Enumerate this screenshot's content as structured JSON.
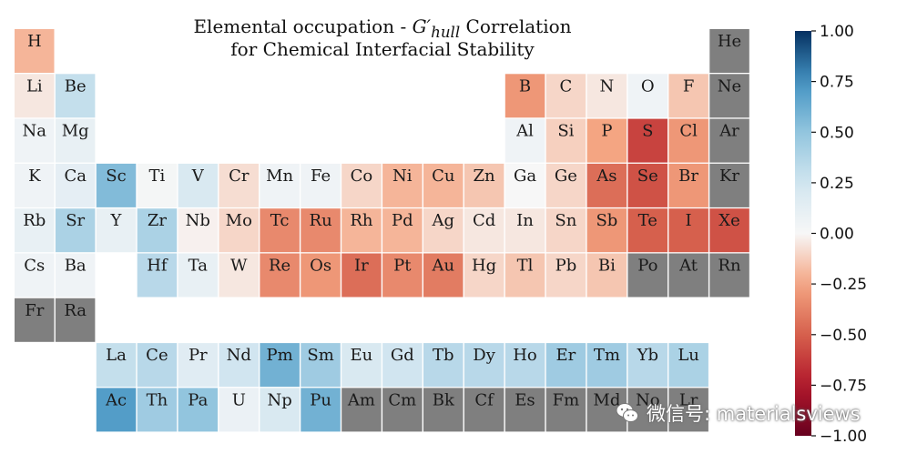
{
  "chart_data": {
    "type": "heatmap",
    "title_lines": [
      {
        "before": "Elemental occupation - ",
        "symbol": "G′",
        "subscript": "hull",
        "after": " Correlation"
      },
      {
        "text": "for Chemical Interfacial Stability"
      }
    ],
    "colorbar": {
      "min": -1.0,
      "max": 1.0,
      "colormap": "RdBu",
      "ticks": [
        1.0,
        0.75,
        0.5,
        0.25,
        0.0,
        -0.25,
        -0.5,
        -0.75,
        -1.0
      ],
      "tick_labels": [
        "1.00",
        "0.75",
        "0.50",
        "0.25",
        "0.00",
        "−0.25",
        "−0.50",
        "−0.75",
        "−1.00"
      ]
    },
    "missing_color": "#7f7f7f",
    "elements": [
      {
        "symbol": "H",
        "row": 1,
        "col": 1,
        "value": -0.2
      },
      {
        "symbol": "He",
        "row": 1,
        "col": 18,
        "value": null
      },
      {
        "symbol": "Li",
        "row": 2,
        "col": 1,
        "value": -0.05
      },
      {
        "symbol": "Be",
        "row": 2,
        "col": 2,
        "value": 0.3
      },
      {
        "symbol": "B",
        "row": 2,
        "col": 13,
        "value": -0.3
      },
      {
        "symbol": "C",
        "row": 2,
        "col": 14,
        "value": -0.1
      },
      {
        "symbol": "N",
        "row": 2,
        "col": 15,
        "value": -0.05
      },
      {
        "symbol": "O",
        "row": 2,
        "col": 16,
        "value": 0.05
      },
      {
        "symbol": "F",
        "row": 2,
        "col": 17,
        "value": -0.15
      },
      {
        "symbol": "Ne",
        "row": 2,
        "col": 18,
        "value": null
      },
      {
        "symbol": "Na",
        "row": 3,
        "col": 1,
        "value": 0.05
      },
      {
        "symbol": "Mg",
        "row": 3,
        "col": 2,
        "value": 0.1
      },
      {
        "symbol": "Al",
        "row": 3,
        "col": 13,
        "value": 0.05
      },
      {
        "symbol": "Si",
        "row": 3,
        "col": 14,
        "value": -0.12
      },
      {
        "symbol": "P",
        "row": 3,
        "col": 15,
        "value": -0.25
      },
      {
        "symbol": "S",
        "row": 3,
        "col": 16,
        "value": -0.6
      },
      {
        "symbol": "Cl",
        "row": 3,
        "col": 17,
        "value": -0.3
      },
      {
        "symbol": "Ar",
        "row": 3,
        "col": 18,
        "value": null
      },
      {
        "symbol": "K",
        "row": 4,
        "col": 1,
        "value": 0.05
      },
      {
        "symbol": "Ca",
        "row": 4,
        "col": 2,
        "value": 0.12
      },
      {
        "symbol": "Sc",
        "row": 4,
        "col": 3,
        "value": 0.55
      },
      {
        "symbol": "Ti",
        "row": 4,
        "col": 4,
        "value": 0.02
      },
      {
        "symbol": "V",
        "row": 4,
        "col": 5,
        "value": 0.2
      },
      {
        "symbol": "Cr",
        "row": 4,
        "col": 6,
        "value": -0.08
      },
      {
        "symbol": "Mn",
        "row": 4,
        "col": 7,
        "value": 0.05
      },
      {
        "symbol": "Fe",
        "row": 4,
        "col": 8,
        "value": 0.05
      },
      {
        "symbol": "Co",
        "row": 4,
        "col": 9,
        "value": -0.1
      },
      {
        "symbol": "Ni",
        "row": 4,
        "col": 10,
        "value": -0.2
      },
      {
        "symbol": "Cu",
        "row": 4,
        "col": 11,
        "value": -0.2
      },
      {
        "symbol": "Zn",
        "row": 4,
        "col": 12,
        "value": -0.15
      },
      {
        "symbol": "Ga",
        "row": 4,
        "col": 13,
        "value": 0.0
      },
      {
        "symbol": "Ge",
        "row": 4,
        "col": 14,
        "value": -0.1
      },
      {
        "symbol": "As",
        "row": 4,
        "col": 15,
        "value": -0.45
      },
      {
        "symbol": "Se",
        "row": 4,
        "col": 16,
        "value": -0.55
      },
      {
        "symbol": "Br",
        "row": 4,
        "col": 17,
        "value": -0.3
      },
      {
        "symbol": "Kr",
        "row": 4,
        "col": 18,
        "value": null
      },
      {
        "symbol": "Rb",
        "row": 5,
        "col": 1,
        "value": 0.1
      },
      {
        "symbol": "Sr",
        "row": 5,
        "col": 2,
        "value": 0.4
      },
      {
        "symbol": "Y",
        "row": 5,
        "col": 3,
        "value": 0.1
      },
      {
        "symbol": "Zr",
        "row": 5,
        "col": 4,
        "value": 0.4
      },
      {
        "symbol": "Nb",
        "row": 5,
        "col": 5,
        "value": -0.02
      },
      {
        "symbol": "Mo",
        "row": 5,
        "col": 6,
        "value": -0.1
      },
      {
        "symbol": "Tc",
        "row": 5,
        "col": 7,
        "value": -0.35
      },
      {
        "symbol": "Ru",
        "row": 5,
        "col": 8,
        "value": -0.35
      },
      {
        "symbol": "Rh",
        "row": 5,
        "col": 9,
        "value": -0.2
      },
      {
        "symbol": "Pd",
        "row": 5,
        "col": 10,
        "value": -0.2
      },
      {
        "symbol": "Ag",
        "row": 5,
        "col": 11,
        "value": -0.1
      },
      {
        "symbol": "Cd",
        "row": 5,
        "col": 12,
        "value": -0.05
      },
      {
        "symbol": "In",
        "row": 5,
        "col": 13,
        "value": -0.05
      },
      {
        "symbol": "Sn",
        "row": 5,
        "col": 14,
        "value": -0.1
      },
      {
        "symbol": "Sb",
        "row": 5,
        "col": 15,
        "value": -0.3
      },
      {
        "symbol": "Te",
        "row": 5,
        "col": 16,
        "value": -0.5
      },
      {
        "symbol": "I",
        "row": 5,
        "col": 17,
        "value": -0.5
      },
      {
        "symbol": "Xe",
        "row": 5,
        "col": 18,
        "value": -0.55
      },
      {
        "symbol": "Cs",
        "row": 6,
        "col": 1,
        "value": 0.05
      },
      {
        "symbol": "Ba",
        "row": 6,
        "col": 2,
        "value": 0.05
      },
      {
        "symbol": "Hf",
        "row": 6,
        "col": 4,
        "value": 0.35
      },
      {
        "symbol": "Ta",
        "row": 6,
        "col": 5,
        "value": 0.1
      },
      {
        "symbol": "W",
        "row": 6,
        "col": 6,
        "value": -0.05
      },
      {
        "symbol": "Re",
        "row": 6,
        "col": 7,
        "value": -0.35
      },
      {
        "symbol": "Os",
        "row": 6,
        "col": 8,
        "value": -0.3
      },
      {
        "symbol": "Ir",
        "row": 6,
        "col": 9,
        "value": -0.45
      },
      {
        "symbol": "Pt",
        "row": 6,
        "col": 10,
        "value": -0.35
      },
      {
        "symbol": "Au",
        "row": 6,
        "col": 11,
        "value": -0.4
      },
      {
        "symbol": "Hg",
        "row": 6,
        "col": 12,
        "value": -0.1
      },
      {
        "symbol": "Tl",
        "row": 6,
        "col": 13,
        "value": -0.15
      },
      {
        "symbol": "Pb",
        "row": 6,
        "col": 14,
        "value": -0.1
      },
      {
        "symbol": "Bi",
        "row": 6,
        "col": 15,
        "value": -0.15
      },
      {
        "symbol": "Po",
        "row": 6,
        "col": 16,
        "value": null
      },
      {
        "symbol": "At",
        "row": 6,
        "col": 17,
        "value": null
      },
      {
        "symbol": "Rn",
        "row": 6,
        "col": 18,
        "value": null
      },
      {
        "symbol": "Fr",
        "row": 7,
        "col": 1,
        "value": null
      },
      {
        "symbol": "Ra",
        "row": 7,
        "col": 2,
        "value": null
      },
      {
        "symbol": "La",
        "row": 8,
        "col": 3,
        "value": 0.3
      },
      {
        "symbol": "Ce",
        "row": 8,
        "col": 4,
        "value": 0.35
      },
      {
        "symbol": "Pr",
        "row": 8,
        "col": 5,
        "value": 0.15
      },
      {
        "symbol": "Nd",
        "row": 8,
        "col": 6,
        "value": 0.25
      },
      {
        "symbol": "Pm",
        "row": 8,
        "col": 7,
        "value": 0.6
      },
      {
        "symbol": "Sm",
        "row": 8,
        "col": 8,
        "value": 0.45
      },
      {
        "symbol": "Eu",
        "row": 8,
        "col": 9,
        "value": 0.2
      },
      {
        "symbol": "Gd",
        "row": 8,
        "col": 10,
        "value": 0.25
      },
      {
        "symbol": "Tb",
        "row": 8,
        "col": 11,
        "value": 0.35
      },
      {
        "symbol": "Dy",
        "row": 8,
        "col": 12,
        "value": 0.35
      },
      {
        "symbol": "Ho",
        "row": 8,
        "col": 13,
        "value": 0.35
      },
      {
        "symbol": "Er",
        "row": 8,
        "col": 14,
        "value": 0.45
      },
      {
        "symbol": "Tm",
        "row": 8,
        "col": 15,
        "value": 0.45
      },
      {
        "symbol": "Yb",
        "row": 8,
        "col": 16,
        "value": 0.35
      },
      {
        "symbol": "Lu",
        "row": 8,
        "col": 17,
        "value": 0.4
      },
      {
        "symbol": "Ac",
        "row": 9,
        "col": 3,
        "value": 0.7
      },
      {
        "symbol": "Th",
        "row": 9,
        "col": 4,
        "value": 0.45
      },
      {
        "symbol": "Pa",
        "row": 9,
        "col": 5,
        "value": 0.5
      },
      {
        "symbol": "U",
        "row": 9,
        "col": 6,
        "value": 0.08
      },
      {
        "symbol": "Np",
        "row": 9,
        "col": 7,
        "value": 0.2
      },
      {
        "symbol": "Pu",
        "row": 9,
        "col": 8,
        "value": 0.6
      },
      {
        "symbol": "Am",
        "row": 9,
        "col": 9,
        "value": null
      },
      {
        "symbol": "Cm",
        "row": 9,
        "col": 10,
        "value": null
      },
      {
        "symbol": "Bk",
        "row": 9,
        "col": 11,
        "value": null
      },
      {
        "symbol": "Cf",
        "row": 9,
        "col": 12,
        "value": null
      },
      {
        "symbol": "Es",
        "row": 9,
        "col": 13,
        "value": null
      },
      {
        "symbol": "Fm",
        "row": 9,
        "col": 14,
        "value": null
      },
      {
        "symbol": "Md",
        "row": 9,
        "col": 15,
        "value": null
      },
      {
        "symbol": "No",
        "row": 9,
        "col": 16,
        "value": null
      },
      {
        "symbol": "Lr",
        "row": 9,
        "col": 17,
        "value": null
      }
    ]
  },
  "watermark": {
    "text": "微信号: materialsviews",
    "icon": "wechat-icon"
  }
}
